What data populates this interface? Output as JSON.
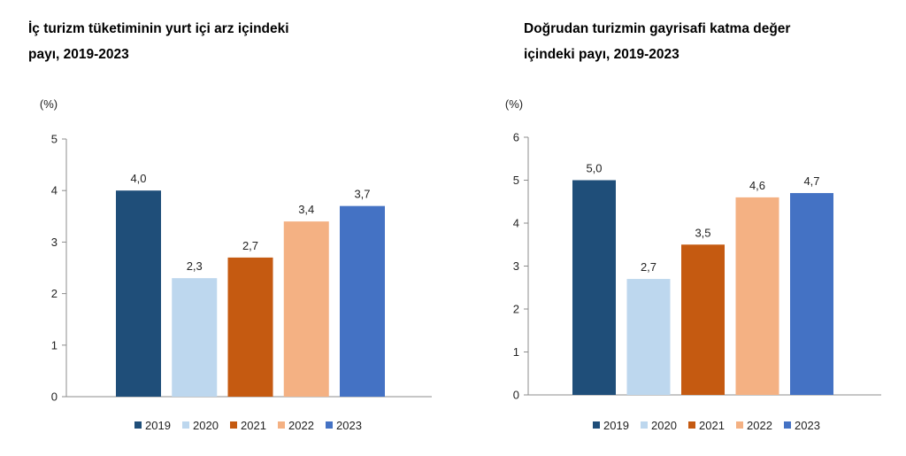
{
  "chart_data": [
    {
      "type": "bar",
      "title_lines": [
        "İç turizm tüketiminin yurt içi arz içindeki",
        "payı, 2019-2023"
      ],
      "unit_label": "(%)",
      "categories": [
        "2019",
        "2020",
        "2021",
        "2022",
        "2023"
      ],
      "values": [
        4.0,
        2.3,
        2.7,
        3.4,
        3.7
      ],
      "value_labels": [
        "4,0",
        "2,3",
        "2,7",
        "3,4",
        "3,7"
      ],
      "colors": [
        "#1f4e79",
        "#bdd7ee",
        "#c55a11",
        "#f4b183",
        "#4472c4"
      ],
      "ylim": [
        0,
        5
      ],
      "yticks": [
        "0",
        "1",
        "2",
        "3",
        "4",
        "5"
      ],
      "legend": [
        "2019",
        "2020",
        "2021",
        "2022",
        "2023"
      ],
      "legend_position": "bottom",
      "grid": false
    },
    {
      "type": "bar",
      "title_lines": [
        "Doğrudan turizmin gayrisafi katma değer",
        "içindeki payı, 2019-2023"
      ],
      "unit_label": "(%)",
      "categories": [
        "2019",
        "2020",
        "2021",
        "2022",
        "2023"
      ],
      "values": [
        5.0,
        2.7,
        3.5,
        4.6,
        4.7
      ],
      "value_labels": [
        "5,0",
        "2,7",
        "3,5",
        "4,6",
        "4,7"
      ],
      "colors": [
        "#1f4e79",
        "#bdd7ee",
        "#c55a11",
        "#f4b183",
        "#4472c4"
      ],
      "ylim": [
        0,
        6
      ],
      "yticks": [
        "0",
        "1",
        "2",
        "3",
        "4",
        "5",
        "6"
      ],
      "legend": [
        "2019",
        "2020",
        "2021",
        "2022",
        "2023"
      ],
      "legend_position": "bottom",
      "grid": false
    }
  ]
}
